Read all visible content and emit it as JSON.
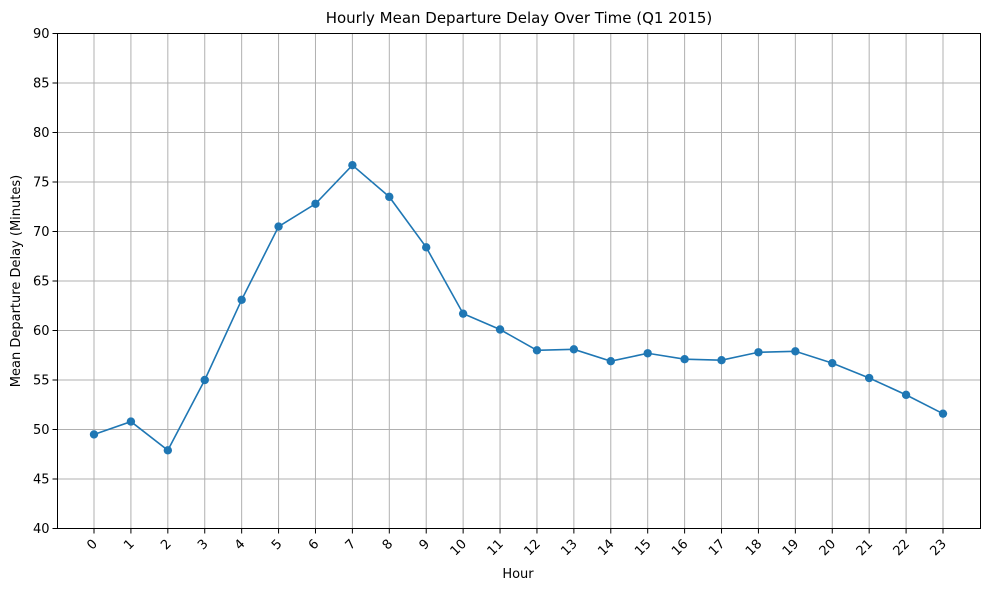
{
  "chart_data": {
    "type": "line",
    "title": "Hourly Mean Departure Delay Over Time (Q1 2015)",
    "xlabel": "Hour",
    "ylabel": "Mean Departure Delay (Minutes)",
    "categories": [
      "0",
      "1",
      "2",
      "3",
      "4",
      "5",
      "6",
      "7",
      "8",
      "9",
      "10",
      "11",
      "12",
      "13",
      "14",
      "15",
      "16",
      "17",
      "18",
      "19",
      "20",
      "21",
      "22",
      "23"
    ],
    "series": [
      {
        "values": [
          49.5,
          50.8,
          47.9,
          55.0,
          63.1,
          70.5,
          72.8,
          76.7,
          73.5,
          68.4,
          61.7,
          60.1,
          58.0,
          58.1,
          56.9,
          57.7,
          57.1,
          57.0,
          57.8,
          57.9,
          56.7,
          55.2,
          53.5,
          51.6
        ],
        "color": "#1f77b4",
        "marker": "circle"
      }
    ],
    "ylim": [
      40,
      90
    ],
    "yticks": [
      40,
      45,
      50,
      55,
      60,
      65,
      70,
      75,
      80,
      85,
      90
    ],
    "grid": true,
    "xtick_rotation": -45
  }
}
